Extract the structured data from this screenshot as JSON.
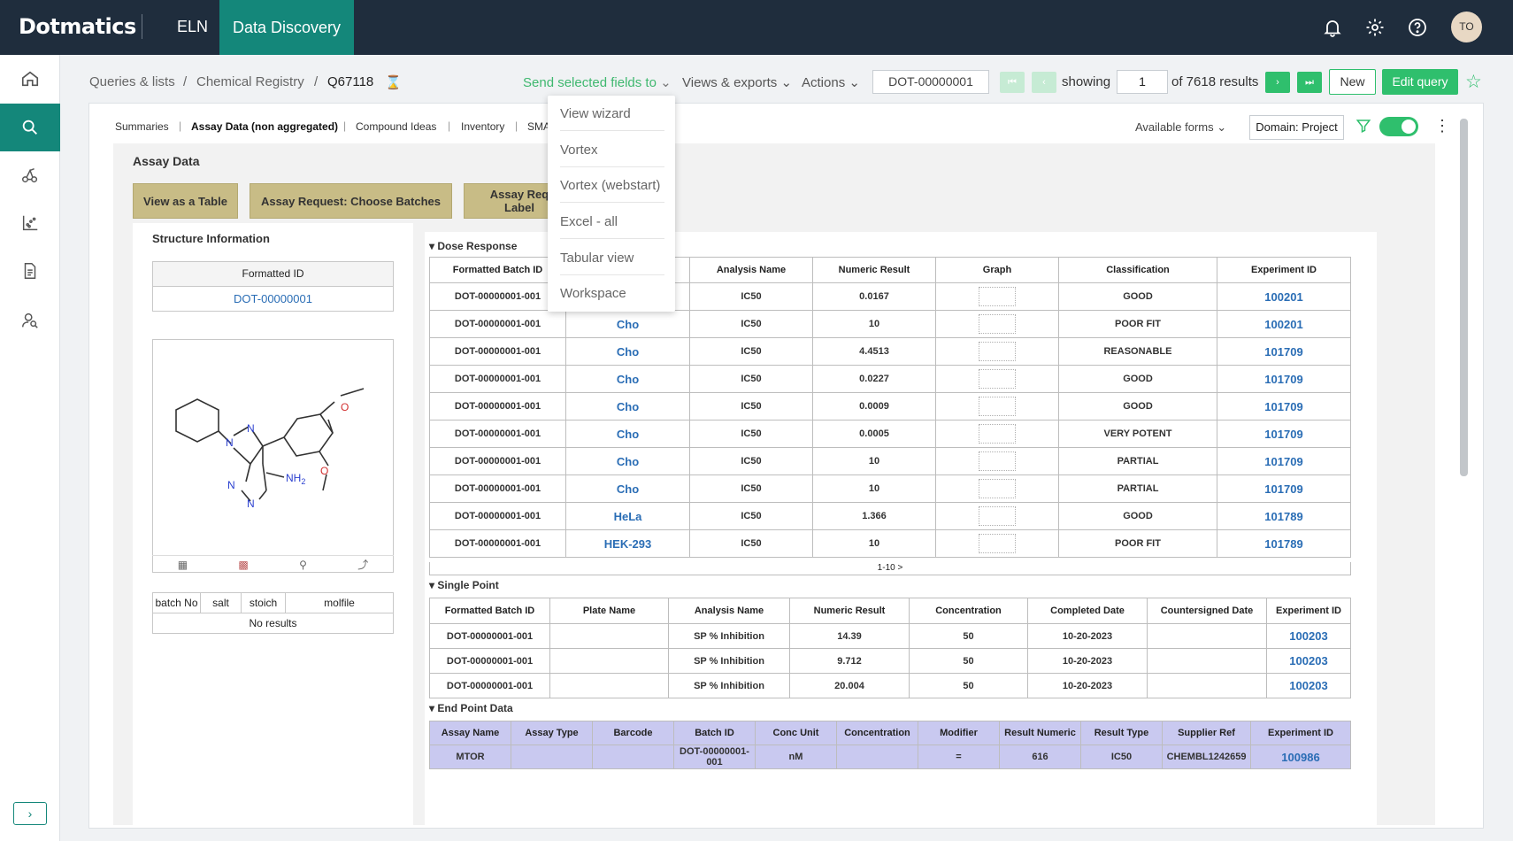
{
  "topbar": {
    "logo": "Dotmatics",
    "nav_eln": "ELN",
    "nav_data_discovery": "Data Discovery",
    "avatar": "TO"
  },
  "breadcrumb": {
    "item1": "Queries & lists",
    "item2": "Chemical Registry",
    "current": "Q67118",
    "sep": "/"
  },
  "toolbar": {
    "send_selected": "Send selected fields to",
    "views_exports": "Views & exports",
    "actions": "Actions",
    "record_id": "DOT-00000001",
    "showing": "showing",
    "page": "1",
    "results": "of 7618 results",
    "new": "New",
    "edit_query": "Edit query"
  },
  "dropdown": {
    "items": [
      "View wizard",
      "Vortex",
      "Vortex (webstart)",
      "Excel - all",
      "Tabular view",
      "Workspace"
    ]
  },
  "tabs": {
    "summaries": "Summaries",
    "assay_data": "Assay Data (non aggregated)",
    "compound_ideas": "Compound Ideas",
    "inventory": "Inventory",
    "sma": "SMA",
    "sep": "|"
  },
  "controls": {
    "available_forms": "Available forms",
    "domain": "Domain: Project"
  },
  "assay": {
    "title": "Assay Data",
    "btn_table": "View as a Table",
    "btn_batches": "Assay Request: Choose Batches",
    "btn_label": "Assay Req Label"
  },
  "structure": {
    "title": "Structure Information",
    "fid_header": "Formatted ID",
    "fid_value": "DOT-00000001",
    "atoms": {
      "n1": "N",
      "n2": "N",
      "n3": "N",
      "n4": "N",
      "o1": "O",
      "o2": "O",
      "nh2": "NH",
      "sub2": "2"
    }
  },
  "batch_table": {
    "headers": [
      "batch No",
      "salt",
      "stoich",
      "molfile"
    ],
    "empty": "No results"
  },
  "dose": {
    "title": "Dose Response",
    "headers": [
      "Formatted Batch ID",
      "",
      "Analysis Name",
      "Numeric Result",
      "Graph",
      "Classification",
      "Experiment ID"
    ],
    "rows": [
      [
        "DOT-00000001-001",
        "",
        "IC50",
        "0.0167",
        "",
        "GOOD",
        "100201"
      ],
      [
        "DOT-00000001-001",
        "Cho",
        "IC50",
        "10",
        "",
        "POOR FIT",
        "100201"
      ],
      [
        "DOT-00000001-001",
        "Cho",
        "IC50",
        "4.4513",
        "",
        "REASONABLE",
        "101709"
      ],
      [
        "DOT-00000001-001",
        "Cho",
        "IC50",
        "0.0227",
        "",
        "GOOD",
        "101709"
      ],
      [
        "DOT-00000001-001",
        "Cho",
        "IC50",
        "0.0009",
        "",
        "GOOD",
        "101709"
      ],
      [
        "DOT-00000001-001",
        "Cho",
        "IC50",
        "0.0005",
        "",
        "VERY POTENT",
        "101709"
      ],
      [
        "DOT-00000001-001",
        "Cho",
        "IC50",
        "10",
        "",
        "PARTIAL",
        "101709"
      ],
      [
        "DOT-00000001-001",
        "Cho",
        "IC50",
        "10",
        "",
        "PARTIAL",
        "101709"
      ],
      [
        "DOT-00000001-001",
        "HeLa",
        "IC50",
        "1.366",
        "",
        "GOOD",
        "101789"
      ],
      [
        "DOT-00000001-001",
        "HEK-293",
        "IC50",
        "10",
        "",
        "POOR FIT",
        "101789"
      ]
    ],
    "pager": "1-10 >"
  },
  "single": {
    "title": "Single Point",
    "headers": [
      "Formatted Batch ID",
      "Plate Name",
      "Analysis Name",
      "Numeric Result",
      "Concentration",
      "Completed Date",
      "Countersigned Date",
      "Experiment ID"
    ],
    "rows": [
      [
        "DOT-00000001-001",
        "",
        "SP % Inhibition",
        "14.39",
        "50",
        "10-20-2023",
        "",
        "100203"
      ],
      [
        "DOT-00000001-001",
        "",
        "SP % Inhibition",
        "9.712",
        "50",
        "10-20-2023",
        "",
        "100203"
      ],
      [
        "DOT-00000001-001",
        "",
        "SP % Inhibition",
        "20.004",
        "50",
        "10-20-2023",
        "",
        "100203"
      ]
    ]
  },
  "endpoint": {
    "title": "End Point Data",
    "headers": [
      "Assay Name",
      "Assay Type",
      "Barcode",
      "Batch ID",
      "Conc Unit",
      "Concentration",
      "Modifier",
      "Result Numeric",
      "Result Type",
      "Supplier Ref",
      "Experiment ID"
    ],
    "rows": [
      [
        "MTOR",
        "",
        "",
        "DOT-00000001-001",
        "nM",
        "",
        "=",
        "616",
        "IC50",
        "CHEMBL1242659",
        "100986"
      ]
    ]
  }
}
